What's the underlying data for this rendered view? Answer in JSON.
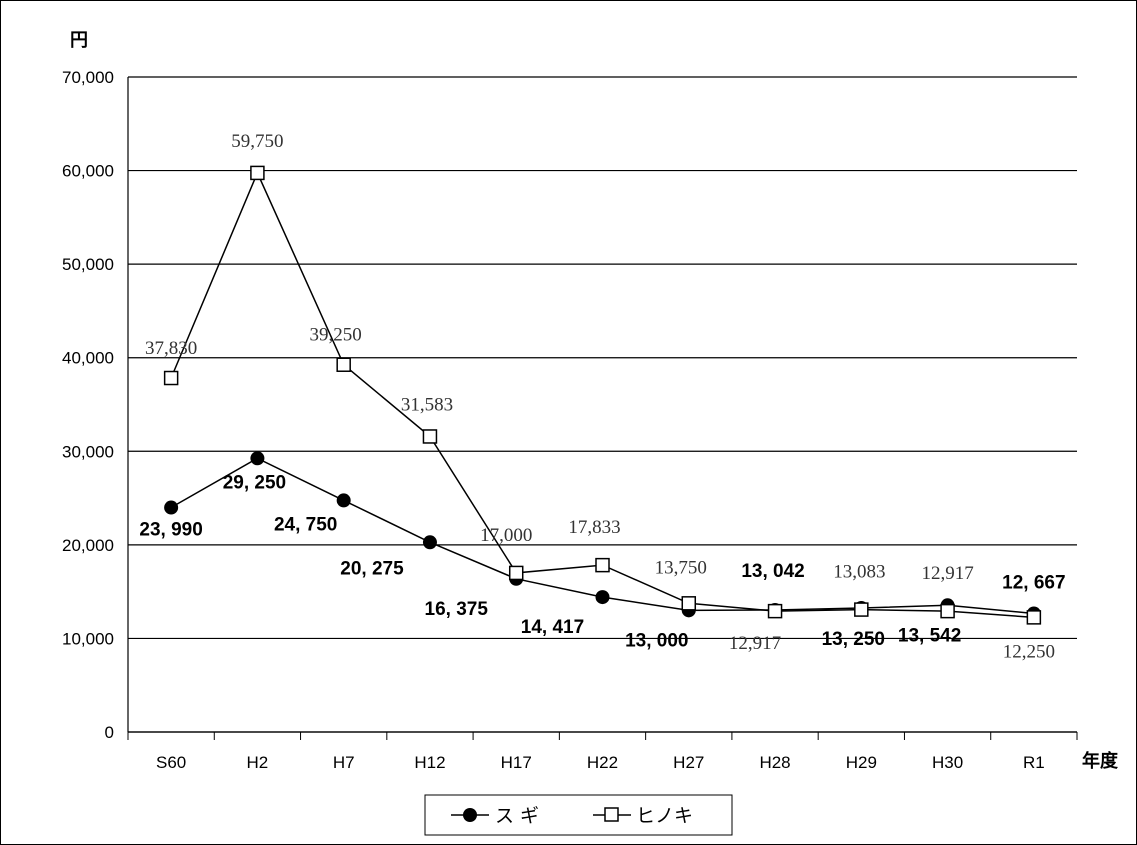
{
  "chart_data": {
    "type": "line",
    "categories": [
      "S60",
      "H2",
      "H7",
      "H12",
      "H17",
      "H22",
      "H27",
      "H28",
      "H29",
      "H30",
      "R1"
    ],
    "ylabel": "円",
    "xlabel": "年度",
    "ylim": [
      0,
      70000
    ],
    "yticks": [
      "0",
      "10,000",
      "20,000",
      "30,000",
      "40,000",
      "50,000",
      "60,000",
      "70,000"
    ],
    "grid": true,
    "legend_position": "bottom-center",
    "series": [
      {
        "name": "ス ギ",
        "marker": "filled-circle",
        "color": "#000000",
        "values": [
          23990,
          29250,
          24750,
          20275,
          16375,
          14417,
          13000,
          13042,
          13250,
          13542,
          12667
        ],
        "labels": [
          "23, 990",
          "29, 250",
          "24, 750",
          "20, 275",
          "16, 375",
          "14, 417",
          "13, 000",
          "13, 042",
          "13, 250",
          "13, 542",
          "12, 667"
        ]
      },
      {
        "name": "ヒノキ",
        "marker": "open-square",
        "color": "#000000",
        "values": [
          37830,
          59750,
          39250,
          31583,
          17000,
          17833,
          13750,
          12917,
          13083,
          12917,
          12250
        ],
        "labels": [
          "37,830",
          "59,750",
          "39,250",
          "31,583",
          "17,000",
          "17,833",
          "13,750",
          "12,917",
          "13,083",
          "12,917",
          "12,250"
        ]
      }
    ]
  }
}
